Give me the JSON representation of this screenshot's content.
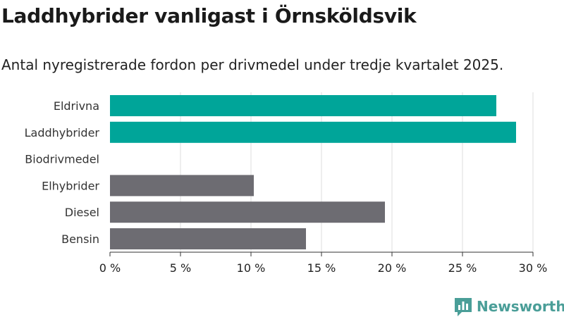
{
  "title": "Laddhybrider vanligast i Örnsköldsvik",
  "subtitle": "Antal nyregistrerade fordon per drivmedel under tredje kvartalet 2025.",
  "brand": {
    "name": "Newsworthy",
    "color": "#4a9e98",
    "icon": "newsworthy-logo-icon"
  },
  "chart_data": {
    "type": "bar",
    "orientation": "horizontal",
    "categories": [
      "Eldrivna",
      "Laddhybrider",
      "Biodrivmedel",
      "Elhybrider",
      "Diesel",
      "Bensin"
    ],
    "values": [
      27.4,
      28.8,
      0,
      10.2,
      19.5,
      13.9
    ],
    "colors": [
      "#00a599",
      "#00a599",
      "#00a599",
      "#6d6c72",
      "#6d6c72",
      "#6d6c72"
    ],
    "xlim": [
      0,
      30
    ],
    "xticks": [
      0,
      5,
      10,
      15,
      20,
      25,
      30
    ],
    "xtick_labels": [
      "0 %",
      "5 %",
      "10 %",
      "15 %",
      "20 %",
      "25 %",
      "30 %"
    ],
    "grid": "vertical",
    "xlabel": "",
    "ylabel": ""
  }
}
